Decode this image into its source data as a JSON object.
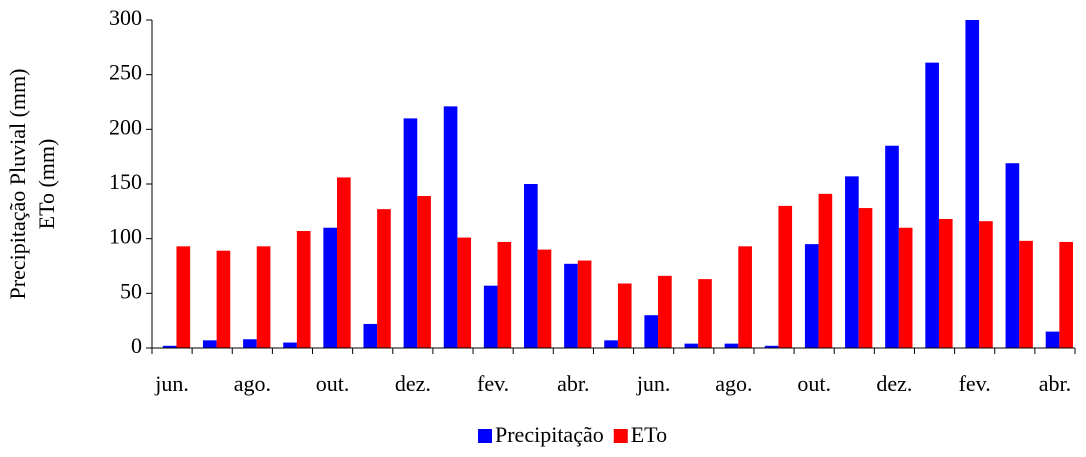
{
  "chart_data": {
    "type": "bar",
    "y_label": [
      "Precipitação Pluvial (mm)",
      "ETo (mm)"
    ],
    "categories": [
      "jun.",
      null,
      "ago.",
      null,
      "out.",
      null,
      "dez.",
      null,
      "fev.",
      null,
      "abr.",
      null,
      "jun.",
      null,
      "ago.",
      null,
      "out.",
      null,
      "dez.",
      null,
      "fev.",
      null,
      "abr."
    ],
    "series": [
      {
        "name": "Precipitação",
        "color": "#0000ff",
        "values": [
          2,
          7,
          8,
          5,
          110,
          22,
          210,
          221,
          57,
          150,
          77,
          7,
          30,
          4,
          4,
          2,
          95,
          157,
          185,
          261,
          300,
          169,
          15
        ]
      },
      {
        "name": "ETo",
        "color": "#ff0000",
        "values": [
          93,
          89,
          93,
          107,
          156,
          127,
          139,
          101,
          97,
          90,
          80,
          59,
          66,
          63,
          93,
          130,
          141,
          128,
          110,
          118,
          116,
          98,
          97
        ]
      }
    ],
    "ylim": [
      0,
      300
    ],
    "yticks": [
      0,
      50,
      100,
      150,
      200,
      250,
      300
    ],
    "legend": "bottom"
  }
}
